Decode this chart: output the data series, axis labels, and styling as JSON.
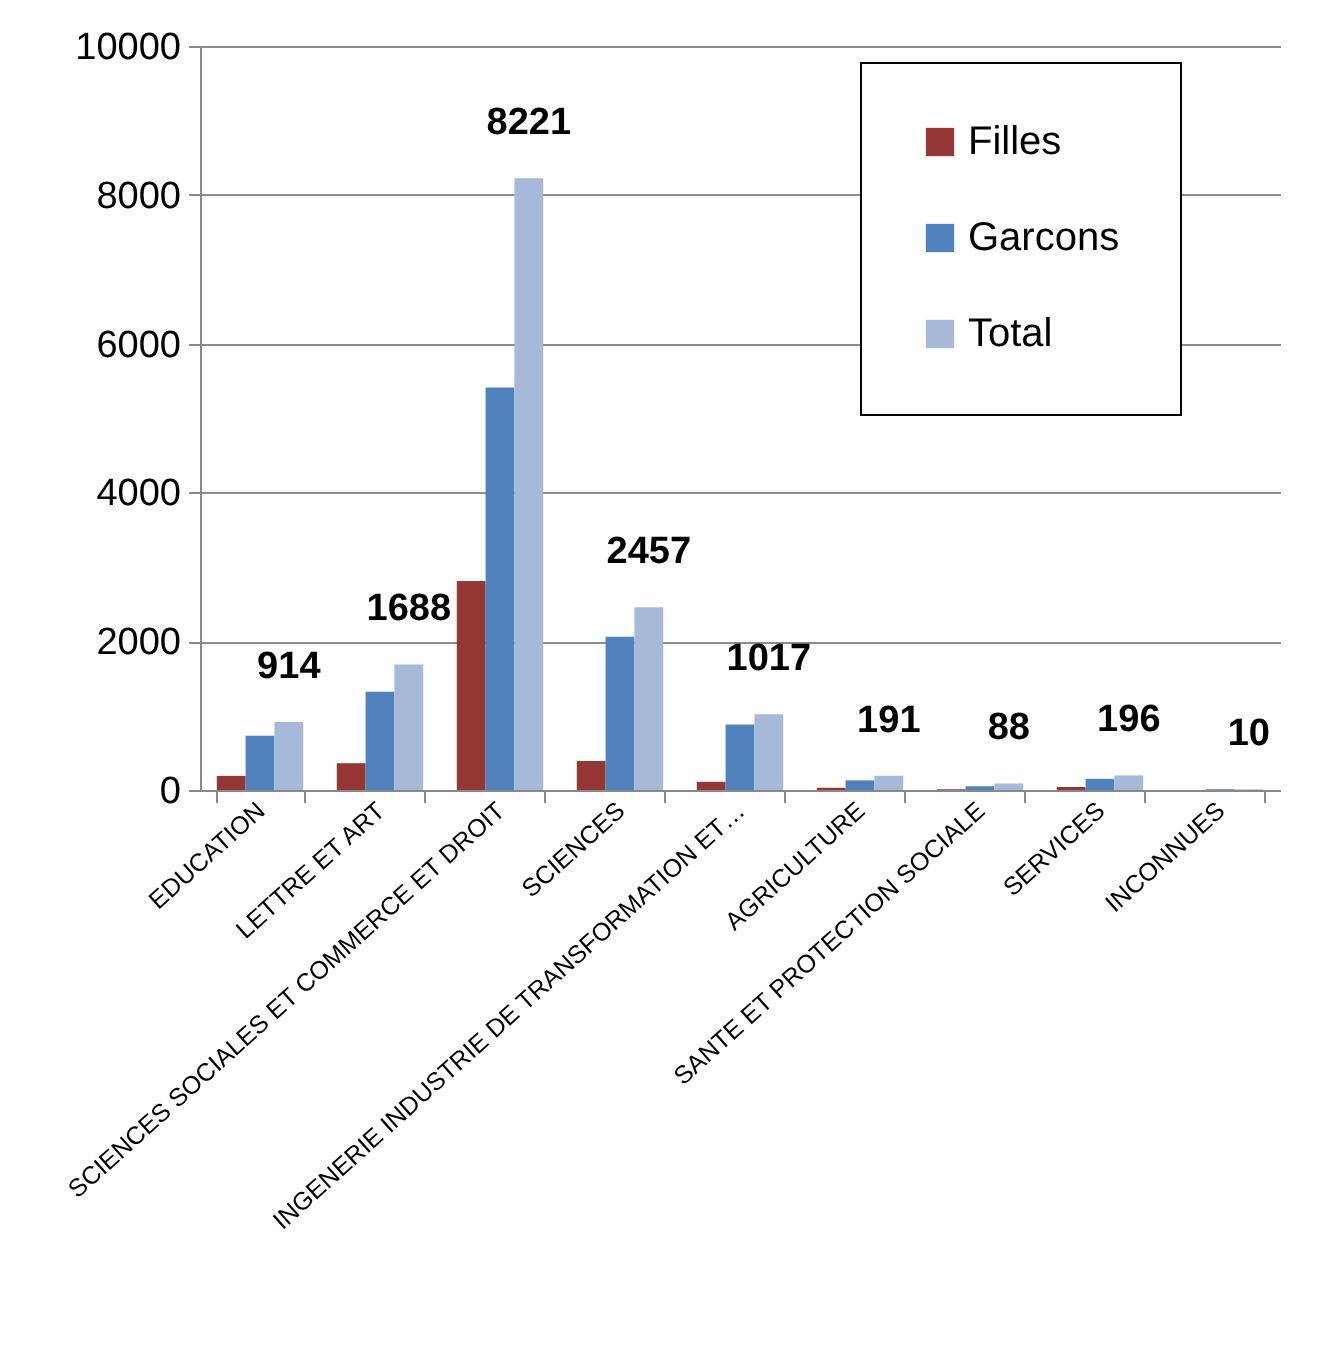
{
  "chart_data": {
    "type": "bar",
    "categories": [
      "EDUCATION",
      "LETTRE ET ART",
      "SCIENCES SOCIALES ET COMMERCE ET DROIT",
      "SCIENCES",
      "INGENERIE INDUSTRIE DE TRANSFORMATION ET…",
      "AGRICULTURE",
      "SANTE ET PROTECTION SOCIALE",
      "SERVICES",
      "INCONNUES"
    ],
    "series": [
      {
        "name": "Filles",
        "color": "#953735",
        "values": [
          190,
          360,
          2810,
          390,
          110,
          30,
          10,
          40,
          0
        ]
      },
      {
        "name": "Garcons",
        "color": "#4f81bd",
        "values": [
          730,
          1320,
          5410,
          2060,
          880,
          130,
          50,
          150,
          10
        ]
      },
      {
        "name": "Total",
        "color": "#a7b9d9",
        "values": [
          914,
          1688,
          8221,
          2457,
          1017,
          191,
          88,
          196,
          10
        ],
        "value_labels": [
          "914",
          "1688",
          "8221",
          "2457",
          "1017",
          "191",
          "88",
          "196",
          "10"
        ]
      }
    ],
    "ylim": [
      0,
      10000
    ],
    "yticks": [
      0,
      2000,
      4000,
      6000,
      8000,
      10000
    ],
    "grid": "y",
    "legend": "top right"
  }
}
